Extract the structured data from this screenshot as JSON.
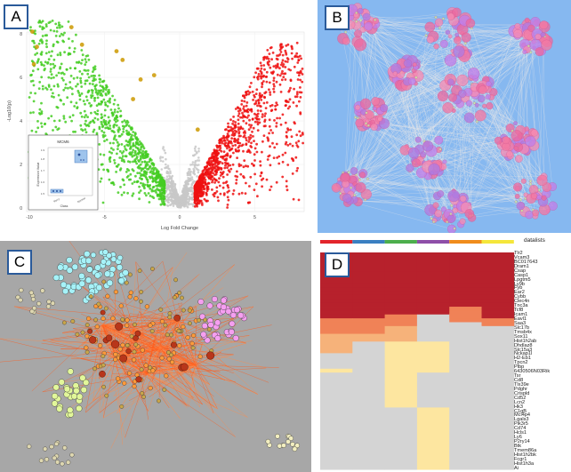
{
  "panels": {
    "a": {
      "label": "A"
    },
    "b": {
      "label": "B"
    },
    "c": {
      "label": "C"
    },
    "d": {
      "label": "D"
    }
  },
  "volcano": {
    "xlabel": "Log Fold Change",
    "ylabel": "-Log10(p)",
    "xticks": [
      "-10",
      "-5",
      "0",
      "5"
    ],
    "yticks": [
      "0",
      "2",
      "4",
      "6",
      "8"
    ],
    "colors": {
      "down": "#44cc22",
      "up": "#ee1111",
      "ns": "#c8c8c8",
      "highlight": "#cc9900"
    },
    "inset": {
      "title": "MCM6",
      "ylabel": "Expression Value",
      "xlabel": "Class",
      "xticks": [
        "Mycy",
        "Normal"
      ],
      "yticks": [
        "1.5",
        "1.6",
        "1.7",
        "1.8",
        "1.9"
      ]
    }
  },
  "heatmap": {
    "header": "datalists",
    "colorbar": [
      "#e3242b",
      "#3a7fc1",
      "#4cae4c",
      "#8e4fa8",
      "#f08c1c",
      "#f5e63a"
    ],
    "genes": [
      "Tlr2",
      "Vcam3",
      "BC017643",
      "Dram1",
      "Csap",
      "Casp1",
      "Lpgtm5",
      "Ly9b",
      "Fyb",
      "Ear2",
      "Cybb",
      "Clec4n",
      "Tnc3a",
      "Tcf8",
      "Icam1",
      "Eavl1",
      "Saa3",
      "Slc17b",
      "Tmsb4x",
      "Sox11",
      "Hist1h2ab",
      "Dhdlaz8",
      "Slc15a3",
      "Nckap1l",
      "H2-Eb1",
      "Tpcn2",
      "Plbp",
      "6430506N03Rik",
      "Tsr",
      "Cd8",
      "Tlx39e",
      "Pdghr",
      "Crispld",
      "Cd52",
      "Lcn2",
      "Hk3",
      "C1qB",
      "Mcl4p4",
      "Lgals3",
      "Pik3r5",
      "Cd74",
      "Hcls1",
      "Ly6",
      "P2ry14",
      "Btk",
      "Tmem86a",
      "Hist1h2bk",
      "Fcgr1",
      "Hist1h3a",
      "Ai"
    ]
  }
}
